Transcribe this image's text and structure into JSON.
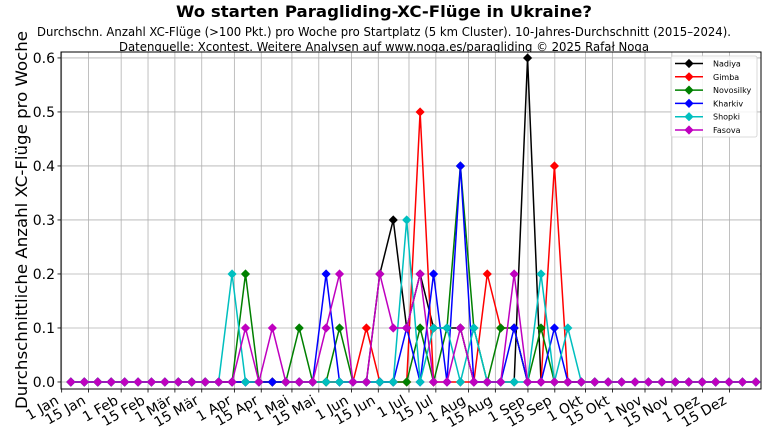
{
  "figure": {
    "title": "Wo starten Paragliding-XC-Flüge in Ukraine?",
    "subtitle_line1": "Durchschn. Anzahl XC-Flüge (>100 Pkt.) pro Woche pro Startplatz (5 km Cluster). 10-Jahres-Durchschnitt (2015–2024).",
    "subtitle_line2": "Datenquelle: Xcontest. Weitere Analysen auf www.noga.es/paragliding © 2025 Rafał Noga"
  },
  "chart_data": {
    "type": "line",
    "title": "Wo starten Paragliding-XC-Flüge in Ukraine?",
    "subtitle": [
      "Durchschn. Anzahl XC-Flüge (>100 Pkt.) pro Woche pro Startplatz (5 km Cluster). 10-Jahres-Durchschnitt (2015–2024).",
      "Datenquelle: Xcontest. Weitere Analysen auf www.noga.es/paragliding © 2025 Rafał Noga"
    ],
    "xlabel": "",
    "ylabel": "Durchschnittliche Anzahl XC-Flüge pro Woche",
    "x_unit": "week of year",
    "x": [
      1,
      2,
      3,
      4,
      5,
      6,
      7,
      8,
      9,
      10,
      11,
      12,
      13,
      14,
      15,
      16,
      17,
      18,
      19,
      20,
      21,
      22,
      23,
      24,
      25,
      26,
      27,
      28,
      29,
      30,
      31,
      32,
      33,
      34,
      35,
      36,
      37,
      38,
      39,
      40,
      41,
      42,
      43,
      44,
      45,
      46,
      47,
      48,
      49,
      50,
      51,
      52
    ],
    "xlim": [
      -0.35,
      364.45
    ],
    "x_ticks": {
      "labels": [
        "1 Jan",
        "15 Jan",
        "1 Feb",
        "15 Feb",
        "1 Mär",
        "15 Mär",
        "1 Apr",
        "15 Apr",
        "1 Mai",
        "15 Mai",
        "1 Jun",
        "15 Jun",
        "1 Jul",
        "15 Jul",
        "1 Aug",
        "15 Aug",
        "1 Sep",
        "15 Sep",
        "1 Okt",
        "15 Okt",
        "1 Nov",
        "15 Nov",
        "1 Dez",
        "15 Dez"
      ],
      "day_of_year": [
        0,
        14,
        31,
        45,
        59,
        73,
        90,
        104,
        120,
        134,
        151,
        165,
        181,
        195,
        212,
        226,
        243,
        257,
        273,
        287,
        304,
        318,
        334,
        348
      ]
    },
    "y_ticks": [
      0.0,
      0.1,
      0.2,
      0.3,
      0.4,
      0.5,
      0.6
    ],
    "y_tick_labels": [
      "0.0",
      "0.1",
      "0.2",
      "0.3",
      "0.4",
      "0.5",
      "0.6"
    ],
    "ylim": [
      -0.013,
      0.611
    ],
    "grid": true,
    "legend_position": "upper right",
    "series": [
      {
        "name": "Nadiya",
        "color": "#000000",
        "values": [
          0,
          0,
          0,
          0,
          0,
          0,
          0,
          0,
          0,
          0,
          0,
          0,
          0,
          0,
          0,
          0,
          0,
          0,
          0,
          0,
          0,
          0,
          0,
          0.2,
          0.3,
          0.1,
          0.2,
          0.1,
          0.1,
          0.1,
          0,
          0,
          0,
          0,
          0.6,
          0,
          0,
          0,
          0,
          0,
          0,
          0,
          0,
          0,
          0,
          0,
          0,
          0,
          0,
          0,
          0,
          0
        ]
      },
      {
        "name": "Gimba",
        "color": "#ff0000",
        "values": [
          0,
          0,
          0,
          0,
          0,
          0,
          0,
          0,
          0,
          0,
          0,
          0,
          0,
          0,
          0,
          0,
          0,
          0,
          0,
          0,
          0,
          0,
          0.1,
          0,
          0,
          0,
          0.5,
          0,
          0,
          0,
          0,
          0.2,
          0.1,
          0.1,
          0,
          0,
          0.4,
          0,
          0,
          0,
          0,
          0,
          0,
          0,
          0,
          0,
          0,
          0,
          0,
          0,
          0,
          0
        ]
      },
      {
        "name": "Novosilky",
        "color": "#008000",
        "values": [
          0,
          0,
          0,
          0,
          0,
          0,
          0,
          0,
          0,
          0,
          0,
          0,
          0,
          0.2,
          0,
          0,
          0,
          0.1,
          0,
          0,
          0.1,
          0,
          0,
          0,
          0,
          0,
          0.1,
          0,
          0.1,
          0.4,
          0.1,
          0,
          0.1,
          0.1,
          0,
          0.1,
          0,
          0,
          0,
          0,
          0,
          0,
          0,
          0,
          0,
          0,
          0,
          0,
          0,
          0,
          0,
          0
        ]
      },
      {
        "name": "Kharkiv",
        "color": "#0000ff",
        "values": [
          0,
          0,
          0,
          0,
          0,
          0,
          0,
          0,
          0,
          0,
          0,
          0,
          0,
          0,
          0,
          0,
          0,
          0,
          0,
          0.2,
          0,
          0,
          0,
          0,
          0,
          0.1,
          0,
          0.2,
          0,
          0.4,
          0,
          0,
          0,
          0.1,
          0,
          0,
          0.1,
          0,
          0,
          0,
          0,
          0,
          0,
          0,
          0,
          0,
          0,
          0,
          0,
          0,
          0,
          0
        ]
      },
      {
        "name": "Shopki",
        "color": "#00bfbf",
        "values": [
          0,
          0,
          0,
          0,
          0,
          0,
          0,
          0,
          0,
          0,
          0,
          0,
          0.2,
          0,
          0,
          null,
          0,
          0,
          0,
          0,
          0,
          0,
          0,
          0,
          0,
          0.3,
          0,
          0.1,
          0.1,
          0,
          0.1,
          0,
          0,
          0,
          0,
          0.2,
          0,
          0.1,
          0,
          0,
          0,
          0,
          0,
          0,
          0,
          0,
          0,
          0,
          0,
          0,
          0,
          0
        ]
      },
      {
        "name": "Fasova",
        "color": "#bf00bf",
        "values": [
          0,
          0,
          0,
          0,
          0,
          0,
          0,
          0,
          0,
          0,
          0,
          0,
          0,
          0.1,
          0,
          0.1,
          0,
          0,
          0,
          0.1,
          0.2,
          0,
          0,
          0.2,
          0.1,
          0.1,
          0.2,
          0,
          0,
          0.1,
          0,
          0,
          0,
          0.2,
          0,
          0,
          0,
          0,
          0,
          0,
          0,
          0,
          0,
          0,
          0,
          0,
          0,
          0,
          0,
          0,
          0,
          0
        ]
      }
    ]
  }
}
